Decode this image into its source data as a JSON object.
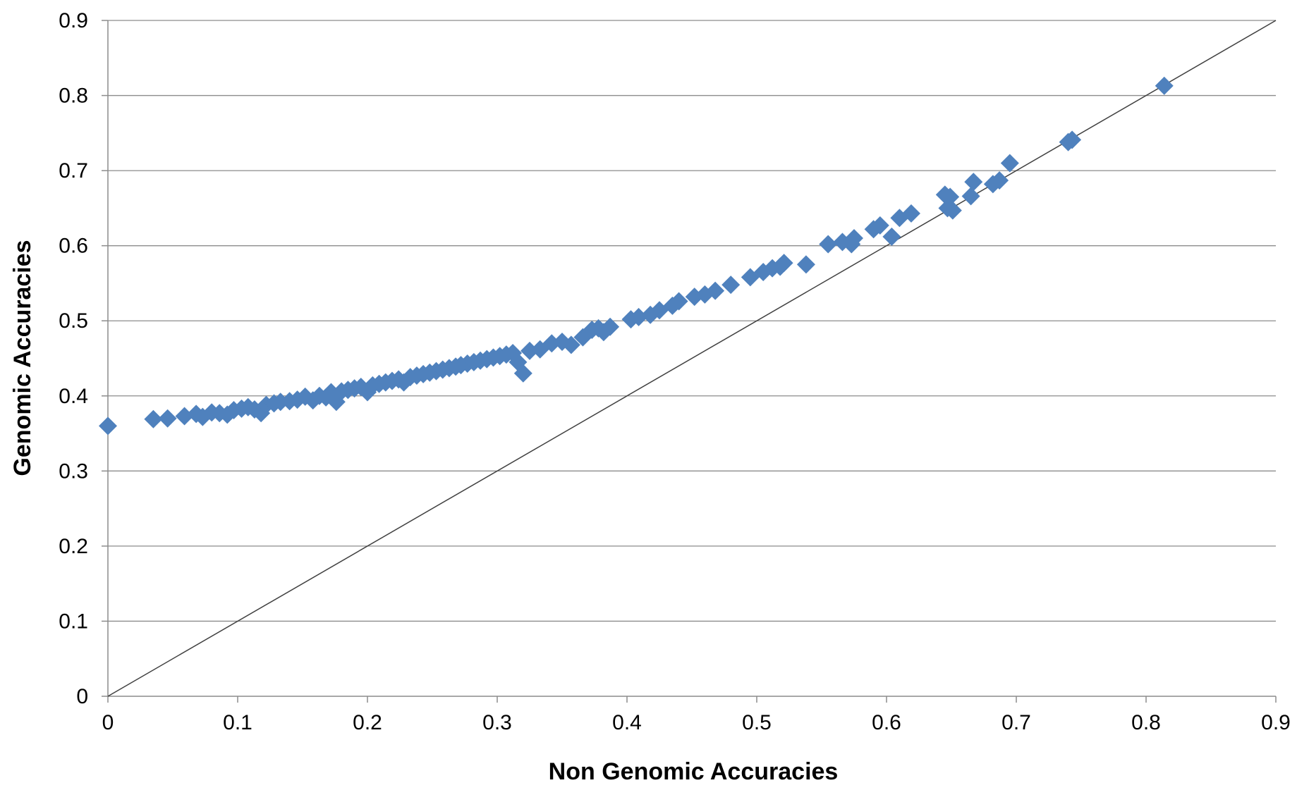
{
  "chart_data": {
    "type": "scatter",
    "title": "",
    "xlabel": "Non Genomic Accuracies",
    "ylabel": "Genomic Accuracies",
    "xlim": [
      0,
      0.9
    ],
    "ylim": [
      0,
      0.9
    ],
    "x_ticks": [
      "0",
      "0.1",
      "0.2",
      "0.3",
      "0.4",
      "0.5",
      "0.6",
      "0.7",
      "0.8",
      "0.9"
    ],
    "y_ticks": [
      "0",
      "0.1",
      "0.2",
      "0.3",
      "0.4",
      "0.5",
      "0.6",
      "0.7",
      "0.8",
      "0.9"
    ],
    "grid": "horizontal",
    "legend": "none",
    "reference_line": {
      "from": [
        0,
        0
      ],
      "to": [
        0.9,
        0.9
      ],
      "color": "#404040"
    },
    "marker": {
      "shape": "diamond",
      "color": "#4F81BD"
    },
    "series": [
      {
        "points": [
          [
            0.0,
            0.36
          ],
          [
            0.035,
            0.369
          ],
          [
            0.046,
            0.37
          ],
          [
            0.059,
            0.373
          ],
          [
            0.068,
            0.376
          ],
          [
            0.073,
            0.372
          ],
          [
            0.08,
            0.378
          ],
          [
            0.086,
            0.377
          ],
          [
            0.092,
            0.375
          ],
          [
            0.097,
            0.381
          ],
          [
            0.103,
            0.383
          ],
          [
            0.108,
            0.385
          ],
          [
            0.113,
            0.382
          ],
          [
            0.118,
            0.377
          ],
          [
            0.122,
            0.388
          ],
          [
            0.128,
            0.39
          ],
          [
            0.133,
            0.392
          ],
          [
            0.14,
            0.393
          ],
          [
            0.146,
            0.395
          ],
          [
            0.152,
            0.399
          ],
          [
            0.158,
            0.394
          ],
          [
            0.163,
            0.4
          ],
          [
            0.168,
            0.398
          ],
          [
            0.172,
            0.405
          ],
          [
            0.176,
            0.392
          ],
          [
            0.18,
            0.406
          ],
          [
            0.185,
            0.408
          ],
          [
            0.19,
            0.41
          ],
          [
            0.195,
            0.412
          ],
          [
            0.2,
            0.405
          ],
          [
            0.204,
            0.414
          ],
          [
            0.209,
            0.416
          ],
          [
            0.214,
            0.418
          ],
          [
            0.219,
            0.42
          ],
          [
            0.224,
            0.422
          ],
          [
            0.228,
            0.418
          ],
          [
            0.233,
            0.425
          ],
          [
            0.238,
            0.427
          ],
          [
            0.243,
            0.429
          ],
          [
            0.248,
            0.431
          ],
          [
            0.253,
            0.433
          ],
          [
            0.258,
            0.435
          ],
          [
            0.263,
            0.437
          ],
          [
            0.268,
            0.439
          ],
          [
            0.272,
            0.441
          ],
          [
            0.277,
            0.443
          ],
          [
            0.282,
            0.445
          ],
          [
            0.287,
            0.447
          ],
          [
            0.292,
            0.449
          ],
          [
            0.297,
            0.451
          ],
          [
            0.302,
            0.453
          ],
          [
            0.307,
            0.455
          ],
          [
            0.312,
            0.457
          ],
          [
            0.316,
            0.445
          ],
          [
            0.32,
            0.43
          ],
          [
            0.325,
            0.46
          ],
          [
            0.333,
            0.462
          ],
          [
            0.342,
            0.47
          ],
          [
            0.35,
            0.472
          ],
          [
            0.357,
            0.468
          ],
          [
            0.366,
            0.478
          ],
          [
            0.373,
            0.488
          ],
          [
            0.378,
            0.49
          ],
          [
            0.382,
            0.485
          ],
          [
            0.387,
            0.492
          ],
          [
            0.403,
            0.502
          ],
          [
            0.409,
            0.505
          ],
          [
            0.418,
            0.508
          ],
          [
            0.425,
            0.514
          ],
          [
            0.435,
            0.52
          ],
          [
            0.44,
            0.526
          ],
          [
            0.452,
            0.532
          ],
          [
            0.46,
            0.535
          ],
          [
            0.468,
            0.54
          ],
          [
            0.48,
            0.548
          ],
          [
            0.495,
            0.558
          ],
          [
            0.505,
            0.565
          ],
          [
            0.512,
            0.57
          ],
          [
            0.518,
            0.572
          ],
          [
            0.521,
            0.577
          ],
          [
            0.538,
            0.575
          ],
          [
            0.555,
            0.602
          ],
          [
            0.566,
            0.605
          ],
          [
            0.575,
            0.61
          ],
          [
            0.573,
            0.602
          ],
          [
            0.59,
            0.622
          ],
          [
            0.595,
            0.627
          ],
          [
            0.604,
            0.612
          ],
          [
            0.61,
            0.637
          ],
          [
            0.619,
            0.643
          ],
          [
            0.645,
            0.668
          ],
          [
            0.649,
            0.665
          ],
          [
            0.647,
            0.65
          ],
          [
            0.651,
            0.647
          ],
          [
            0.665,
            0.666
          ],
          [
            0.667,
            0.685
          ],
          [
            0.682,
            0.682
          ],
          [
            0.687,
            0.687
          ],
          [
            0.695,
            0.71
          ],
          [
            0.74,
            0.738
          ],
          [
            0.743,
            0.741
          ],
          [
            0.814,
            0.813
          ]
        ]
      }
    ]
  }
}
